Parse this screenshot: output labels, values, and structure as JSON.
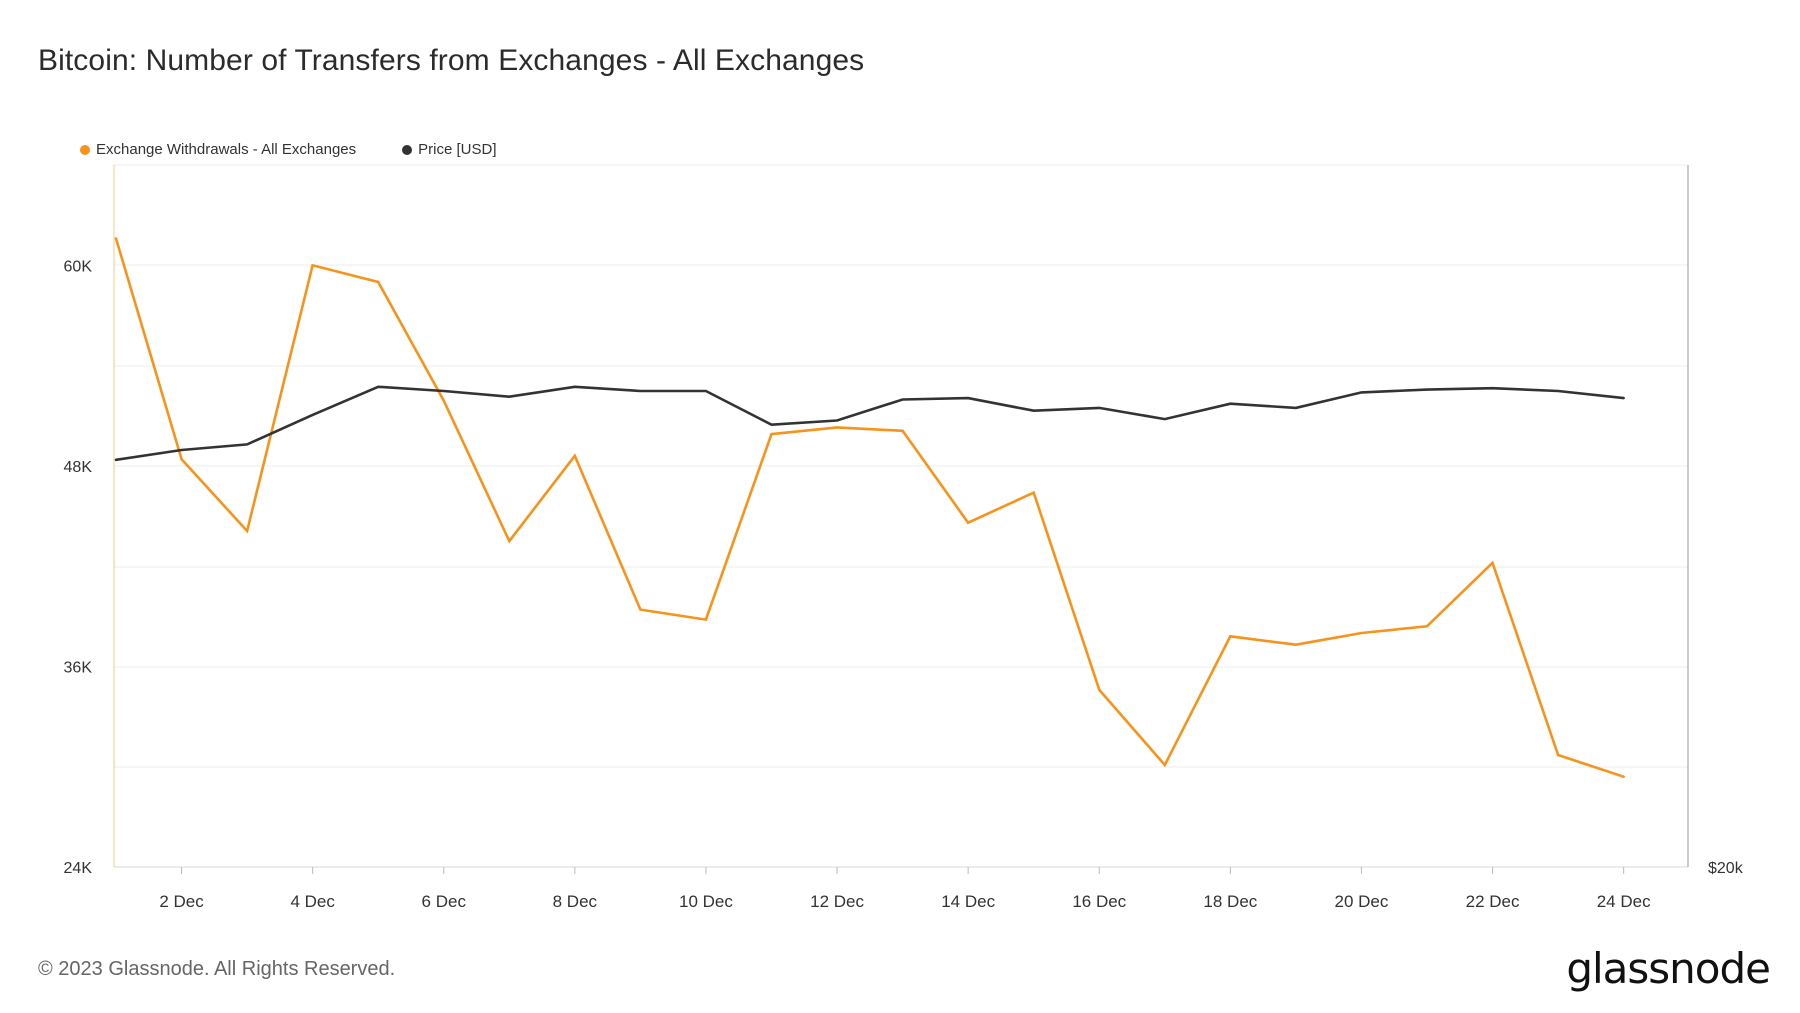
{
  "title": "Bitcoin: Number of Transfers from Exchanges - All Exchanges",
  "legend": {
    "series1": "Exchange Withdrawals - All Exchanges",
    "series2": "Price [USD]"
  },
  "footer": "© 2023 Glassnode. All Rights Reserved.",
  "brand": "glassnode",
  "colors": {
    "withdrawals": "#f7931a",
    "price": "#333333",
    "grid": "#ececec",
    "axis_left": "#f7c98a"
  },
  "chart_data": {
    "type": "line",
    "x": [
      "1 Dec",
      "2 Dec",
      "3 Dec",
      "4 Dec",
      "5 Dec",
      "6 Dec",
      "7 Dec",
      "8 Dec",
      "9 Dec",
      "10 Dec",
      "11 Dec",
      "12 Dec",
      "13 Dec",
      "14 Dec",
      "15 Dec",
      "16 Dec",
      "17 Dec",
      "18 Dec",
      "19 Dec",
      "20 Dec",
      "21 Dec",
      "22 Dec",
      "23 Dec",
      "24 Dec"
    ],
    "x_tick_labels": [
      "2 Dec",
      "4 Dec",
      "6 Dec",
      "8 Dec",
      "10 Dec",
      "12 Dec",
      "14 Dec",
      "16 Dec",
      "18 Dec",
      "20 Dec",
      "22 Dec",
      "24 Dec"
    ],
    "y_left": {
      "ticks": [
        "24K",
        "36K",
        "48K",
        "60K"
      ],
      "tick_values": [
        24000,
        36000,
        48000,
        60000
      ],
      "range": [
        24000,
        66000
      ]
    },
    "y_right": {
      "ticks": [
        "$20k"
      ]
    },
    "series": [
      {
        "name": "Exchange Withdrawals - All Exchanges",
        "axis": "left",
        "values": [
          61600,
          48400,
          44100,
          60000,
          59000,
          51900,
          43500,
          48600,
          39400,
          38800,
          49900,
          50300,
          50100,
          44600,
          46400,
          34600,
          30100,
          37800,
          37300,
          38000,
          38400,
          42200,
          30700,
          29400
        ]
      },
      {
        "name": "Price [USD]",
        "axis": "right",
        "values": [
          49000,
          49700,
          50100,
          52200,
          54200,
          53900,
          53500,
          54200,
          53900,
          53900,
          51500,
          51800,
          53300,
          53400,
          52500,
          52700,
          51900,
          53000,
          52700,
          53800,
          54000,
          54100,
          53900,
          53400
        ]
      }
    ]
  }
}
